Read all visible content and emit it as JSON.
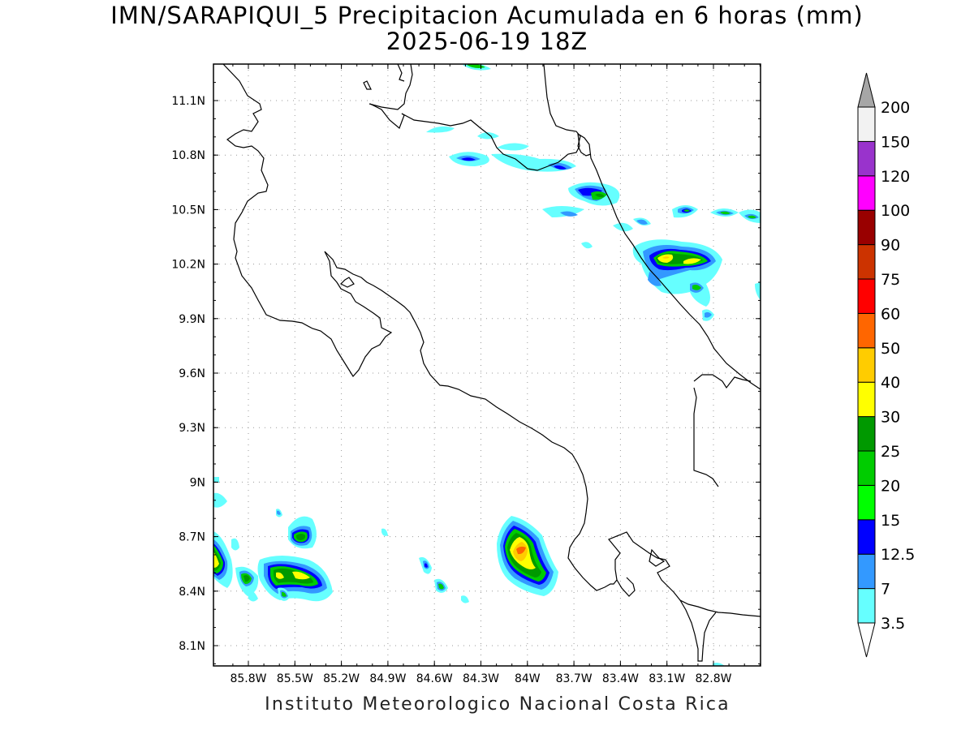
{
  "title": {
    "line1": "IMN/SARAPIQUI_5 Precipitacion Acumulada en 6 horas (mm)",
    "line2": "2025-06-19 18Z"
  },
  "footer": "Instituto Meteorologico Nacional Costa Rica",
  "axes": {
    "lat_ticks": [
      "11.1N",
      "10.8N",
      "10.5N",
      "10.2N",
      "9.9N",
      "9.6N",
      "9.3N",
      "9N",
      "8.7N",
      "8.4N",
      "8.1N"
    ],
    "lon_ticks": [
      "85.8W",
      "85.5W",
      "85.2W",
      "84.9W",
      "84.6W",
      "84.3W",
      "84W",
      "83.7W",
      "83.4W",
      "83.1W",
      "82.8W"
    ],
    "lat_values": [
      11.1,
      10.8,
      10.5,
      10.2,
      9.9,
      9.6,
      9.3,
      9.0,
      8.7,
      8.4,
      8.1
    ],
    "lon_values": [
      -85.8,
      -85.5,
      -85.2,
      -84.9,
      -84.6,
      -84.3,
      -84.0,
      -83.7,
      -83.4,
      -83.1,
      -82.8
    ],
    "grid": "dotted"
  },
  "legend": {
    "levels": [
      "3.5",
      "7",
      "12.5",
      "15",
      "20",
      "25",
      "30",
      "40",
      "50",
      "60",
      "75",
      "90",
      "100",
      "120",
      "150",
      "200"
    ],
    "colors": [
      "#66ffff",
      "#3399ff",
      "#0000ff",
      "#00ff00",
      "#00cc00",
      "#009900",
      "#ffff00",
      "#ffcc00",
      "#ff6600",
      "#ff0000",
      "#cc3300",
      "#990000",
      "#ff00ff",
      "#9933cc",
      "#f2f2f2",
      "#a6a6a6"
    ],
    "below_min_color": "#ffffff",
    "above_max_color": "#a6a6a6"
  },
  "palette": {
    "coast": "#000000",
    "grid": "#999999"
  }
}
